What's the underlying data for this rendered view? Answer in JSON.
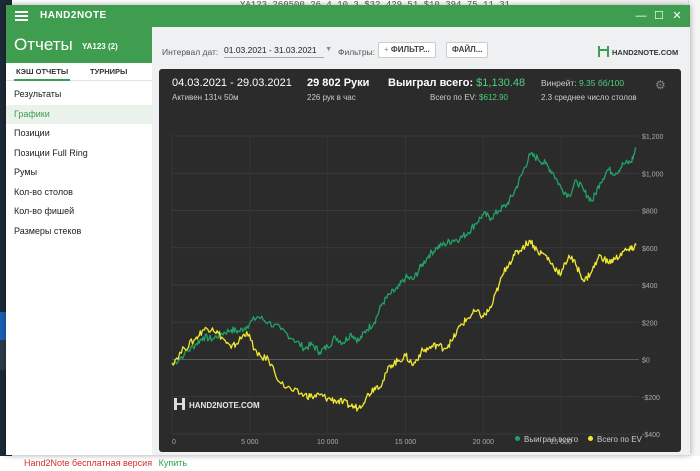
{
  "background": {
    "status_footer": "Hand2Note бесплатная версия",
    "buy_link": "Купить",
    "table_glimpse": "YA123        260500    26.4    10.3    $32,429.51    $10,394.75    11.31"
  },
  "titlebar": {
    "title": "HAND2NOTE",
    "minimize": "—",
    "maximize": "☐",
    "close": "✕"
  },
  "sidebar": {
    "title": "Отчеты",
    "profile": "YA123 (2)",
    "tabs": [
      "КЭШ ОТЧЕТЫ",
      "ТУРНИРЫ"
    ],
    "items": [
      {
        "label": "Результаты",
        "active": false
      },
      {
        "label": "Графики",
        "active": true
      },
      {
        "label": "Позиции",
        "active": false
      },
      {
        "label": "Позиции Full Ring",
        "active": false
      },
      {
        "label": "Румы",
        "active": false
      },
      {
        "label": "Кол-во столов",
        "active": false
      },
      {
        "label": "Кол-во фишей",
        "active": false
      },
      {
        "label": "Размеры стеков",
        "active": false
      }
    ]
  },
  "toolbar": {
    "interval_label": "Интервал дат:",
    "interval_value": "01.03.2021 - 31.03.2021",
    "filters_label": "Фильтры:",
    "filter_button": "ФИЛЬТР...",
    "file_button": "ФАЙЛ...",
    "logo": "HAND2NOTE.COM"
  },
  "stats": {
    "period": "04.03.2021 - 29.03.2021",
    "active": "Активен 131ч 50м",
    "hands": "29 802 Руки",
    "hands_per_hour": "226 рук в час",
    "won_total_label": "Выиграл всего:",
    "won_total_value": "$1,130.48",
    "ev_total_label": "Всего по EV:",
    "ev_total_value": "$612.90",
    "winrate_label": "Винрейт:",
    "winrate_value": "9.35 бб/100",
    "avg_tables": "2.3 среднее число столов"
  },
  "chart_data": {
    "type": "line",
    "watermark": "HAND2NOTE.COM",
    "xlim": [
      0,
      30000
    ],
    "ylim": [
      -400,
      1200
    ],
    "x_ticks": [
      0,
      5000,
      10000,
      15000,
      20000,
      25000
    ],
    "x_tick_labels": [
      "0",
      "5 000",
      "10 000",
      "15 000",
      "20 000",
      "25 000"
    ],
    "y_ticks": [
      -400,
      -200,
      0,
      200,
      400,
      600,
      800,
      1000,
      1200
    ],
    "y_tick_labels": [
      "-$400",
      "-$200",
      "$0",
      "$200",
      "$400",
      "$600",
      "$800",
      "$1,000",
      "$1,200"
    ],
    "grid": true,
    "legend_position": "bottom-right",
    "series": [
      {
        "name": "Выиграл всего",
        "color": "#21a366",
        "points": [
          [
            0,
            -30
          ],
          [
            800,
            30
          ],
          [
            1500,
            80
          ],
          [
            2000,
            120
          ],
          [
            2600,
            110
          ],
          [
            3200,
            140
          ],
          [
            3800,
            160
          ],
          [
            4300,
            150
          ],
          [
            4800,
            180
          ],
          [
            5500,
            230
          ],
          [
            6200,
            200
          ],
          [
            7000,
            160
          ],
          [
            7800,
            110
          ],
          [
            8500,
            60
          ],
          [
            9000,
            80
          ],
          [
            9500,
            40
          ],
          [
            10000,
            70
          ],
          [
            10500,
            120
          ],
          [
            11000,
            90
          ],
          [
            11500,
            140
          ],
          [
            12000,
            100
          ],
          [
            12500,
            160
          ],
          [
            13000,
            200
          ],
          [
            13500,
            300
          ],
          [
            14000,
            350
          ],
          [
            14500,
            380
          ],
          [
            15000,
            440
          ],
          [
            15500,
            430
          ],
          [
            16000,
            500
          ],
          [
            16500,
            560
          ],
          [
            17000,
            600
          ],
          [
            17500,
            620
          ],
          [
            18000,
            640
          ],
          [
            18500,
            650
          ],
          [
            19000,
            680
          ],
          [
            19500,
            730
          ],
          [
            20000,
            780
          ],
          [
            20500,
            760
          ],
          [
            21000,
            800
          ],
          [
            21500,
            830
          ],
          [
            22000,
            900
          ],
          [
            22500,
            1000
          ],
          [
            23000,
            1100
          ],
          [
            23500,
            1080
          ],
          [
            24000,
            1050
          ],
          [
            24500,
            1000
          ],
          [
            25000,
            920
          ],
          [
            25500,
            880
          ],
          [
            26000,
            960
          ],
          [
            26500,
            900
          ],
          [
            27000,
            850
          ],
          [
            27500,
            950
          ],
          [
            28000,
            1020
          ],
          [
            28500,
            1000
          ],
          [
            29000,
            1050
          ],
          [
            29500,
            1060
          ],
          [
            29802,
            1130
          ]
        ]
      },
      {
        "name": "Всего по EV",
        "color": "#f0e832",
        "points": [
          [
            0,
            -20
          ],
          [
            800,
            60
          ],
          [
            1500,
            110
          ],
          [
            2000,
            160
          ],
          [
            2600,
            170
          ],
          [
            3200,
            120
          ],
          [
            3800,
            60
          ],
          [
            4300,
            100
          ],
          [
            4800,
            150
          ],
          [
            5500,
            20
          ],
          [
            6200,
            0
          ],
          [
            7000,
            -130
          ],
          [
            7800,
            -170
          ],
          [
            8500,
            -190
          ],
          [
            9000,
            -200
          ],
          [
            9500,
            -190
          ],
          [
            10000,
            -210
          ],
          [
            10500,
            -220
          ],
          [
            11000,
            -230
          ],
          [
            11500,
            -250
          ],
          [
            12000,
            -260
          ],
          [
            12500,
            -200
          ],
          [
            13000,
            -150
          ],
          [
            13500,
            -130
          ],
          [
            14000,
            -30
          ],
          [
            14500,
            -10
          ],
          [
            15000,
            20
          ],
          [
            15500,
            -30
          ],
          [
            16000,
            40
          ],
          [
            16500,
            60
          ],
          [
            17000,
            80
          ],
          [
            17500,
            60
          ],
          [
            18000,
            100
          ],
          [
            18500,
            180
          ],
          [
            19000,
            220
          ],
          [
            19500,
            260
          ],
          [
            20000,
            230
          ],
          [
            20500,
            280
          ],
          [
            21000,
            400
          ],
          [
            21500,
            500
          ],
          [
            22000,
            560
          ],
          [
            22500,
            600
          ],
          [
            23000,
            640
          ],
          [
            23500,
            580
          ],
          [
            24000,
            560
          ],
          [
            24500,
            500
          ],
          [
            25000,
            460
          ],
          [
            25500,
            560
          ],
          [
            26000,
            500
          ],
          [
            26500,
            420
          ],
          [
            27000,
            480
          ],
          [
            27500,
            560
          ],
          [
            28000,
            520
          ],
          [
            28500,
            540
          ],
          [
            29000,
            580
          ],
          [
            29500,
            590
          ],
          [
            29802,
            613
          ]
        ]
      }
    ]
  }
}
